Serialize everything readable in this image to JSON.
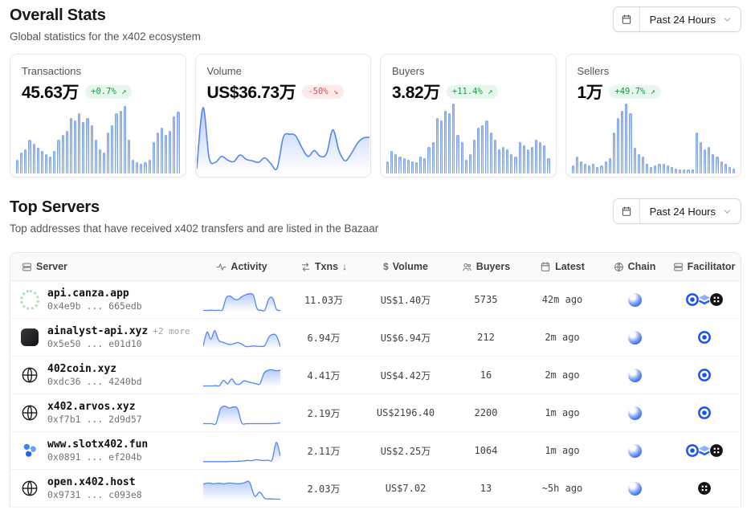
{
  "header": {
    "title": "Overall Stats",
    "subtitle": "Global statistics for the x402 ecosystem",
    "range_label": "Past 24 Hours"
  },
  "top_servers": {
    "title": "Top Servers",
    "subtitle": "Top addresses that have received x402 transfers and are listed in the Bazaar",
    "range_label": "Past 24 Hours"
  },
  "colors": {
    "accent_blue": "#3b82f6",
    "spark_stroke": "#5585f2",
    "badge_up_text": "#179a43",
    "badge_down_text": "#e5484d",
    "chain_blue": "#2f5ef3"
  },
  "cards": [
    {
      "label": "Transactions",
      "value": "45.63万",
      "change": "+0.7%",
      "arrow": "↗",
      "direction": "up",
      "chart_type": "bar",
      "trend": [
        18,
        28,
        32,
        46,
        40,
        34,
        30,
        26,
        22,
        30,
        46,
        52,
        58,
        76,
        72,
        82,
        70,
        76,
        66,
        46,
        32,
        28,
        56,
        66,
        82,
        86,
        92,
        46,
        18,
        14,
        12,
        14,
        18,
        42,
        56,
        62,
        52,
        58,
        78,
        84
      ]
    },
    {
      "label": "Volume",
      "value": "US$36.73万",
      "change": "-50%",
      "arrow": "↘",
      "direction": "down",
      "chart_type": "area",
      "trend": [
        6,
        88,
        20,
        14,
        22,
        17,
        15,
        24,
        18,
        16,
        14,
        20,
        12,
        6,
        48,
        52,
        50,
        34,
        22,
        30,
        22,
        26,
        58,
        30,
        16,
        26,
        40,
        47,
        48
      ]
    },
    {
      "label": "Buyers",
      "value": "3.82万",
      "change": "+11.4%",
      "arrow": "↗",
      "direction": "up",
      "chart_type": "bar",
      "trend": [
        16,
        30,
        26,
        22,
        20,
        18,
        16,
        15,
        22,
        20,
        36,
        42,
        76,
        72,
        86,
        82,
        96,
        52,
        42,
        18,
        26,
        46,
        62,
        66,
        72,
        56,
        46,
        32,
        36,
        32,
        26,
        22,
        42,
        38,
        32,
        36,
        46,
        42,
        38,
        20
      ]
    },
    {
      "label": "Sellers",
      "value": "1万",
      "change": "+49.7%",
      "arrow": "↗",
      "direction": "up",
      "chart_type": "bar",
      "trend": [
        10,
        22,
        16,
        12,
        10,
        12,
        8,
        10,
        16,
        20,
        56,
        76,
        86,
        96,
        82,
        34,
        26,
        22,
        12,
        8,
        10,
        12,
        12,
        10,
        8,
        6,
        5,
        5,
        4,
        4,
        56,
        42,
        32,
        36,
        26,
        22,
        16,
        12,
        8,
        6
      ]
    }
  ],
  "table": {
    "columns": [
      {
        "label": "Server",
        "icon": "server-stack"
      },
      {
        "label": "Activity",
        "icon": "activity"
      },
      {
        "label": "Txns",
        "icon": "swap",
        "sort": "↓"
      },
      {
        "label": "Volume",
        "icon": "dollar"
      },
      {
        "label": "Buyers",
        "icon": "users"
      },
      {
        "label": "Latest",
        "icon": "calendar"
      },
      {
        "label": "Chain",
        "icon": "globe"
      },
      {
        "label": "Facilitator",
        "icon": "server-stack"
      }
    ],
    "rows": [
      {
        "name": "api.canza.app",
        "extra": "",
        "address": "0x4e9b ... 665edb",
        "avatar": "green-ring",
        "txns": "11.03万",
        "volume": "US$1.40万",
        "buyers": "5735",
        "latest": "42m ago",
        "chain": "base",
        "facilitators": [
          "coinbase",
          "layers",
          "dark"
        ],
        "activity": [
          5,
          5,
          6,
          5,
          6,
          8,
          58,
          64,
          52,
          50,
          62,
          70,
          74,
          68,
          12,
          6,
          6,
          52,
          56,
          10,
          5
        ]
      },
      {
        "name": "ainalyst-api.xyz",
        "extra": "+2 more",
        "address": "0x5e50 ... e01d10",
        "avatar": "dark-app",
        "txns": "6.94万",
        "volume": "US$6.94万",
        "buyers": "212",
        "latest": "2m ago",
        "chain": "base",
        "facilitators": [
          "coinbase"
        ],
        "activity": [
          14,
          72,
          42,
          78,
          38,
          30,
          24,
          20,
          24,
          28,
          22,
          12,
          12,
          14,
          13,
          12,
          16,
          50,
          62,
          56,
          12
        ]
      },
      {
        "name": "402coin.xyz",
        "extra": "",
        "address": "0xdc36 ... 4240bd",
        "avatar": "globe",
        "txns": "4.41万",
        "volume": "US$4.42万",
        "buyers": "16",
        "latest": "2m ago",
        "chain": "base",
        "facilitators": [
          "coinbase"
        ],
        "activity": [
          5,
          5,
          5,
          6,
          6,
          28,
          14,
          34,
          14,
          12,
          26,
          22,
          18,
          14,
          14,
          58,
          70,
          72,
          68,
          70
        ]
      },
      {
        "name": "x402.arvos.xyz",
        "extra": "",
        "address": "0xf7b1 ... 2d9d57",
        "avatar": "globe",
        "txns": "2.19万",
        "volume": "US$2196.40",
        "buyers": "2200",
        "latest": "1m ago",
        "chain": "base",
        "facilitators": [
          "coinbase"
        ],
        "activity": [
          5,
          5,
          5,
          6,
          66,
          78,
          70,
          74,
          68,
          8,
          5,
          5,
          5,
          5,
          5,
          5,
          5,
          6,
          8
        ]
      },
      {
        "name": "www.slotx402.fun",
        "extra": "",
        "address": "0x0891 ... ef204b",
        "avatar": "blue-spinner",
        "txns": "2.11万",
        "volume": "US$2.25万",
        "buyers": "1064",
        "latest": "1m ago",
        "chain": "base",
        "facilitators": [
          "coinbase",
          "layers",
          "dark"
        ],
        "activity": [
          4,
          4,
          4,
          4,
          4,
          4,
          4,
          5,
          5,
          6,
          7,
          9,
          8,
          12,
          10,
          9,
          10,
          12,
          84,
          28
        ]
      },
      {
        "name": "open.x402.host",
        "extra": "",
        "address": "0x9731 ... c093e8",
        "avatar": "globe",
        "txns": "2.03万",
        "volume": "US$7.02",
        "buyers": "13",
        "latest": "~5h ago",
        "chain": "base",
        "facilitators": [
          "dark"
        ],
        "activity": [
          68,
          72,
          69,
          71,
          69,
          72,
          70,
          69,
          73,
          76,
          18,
          34,
          8,
          6,
          5,
          5
        ]
      }
    ]
  }
}
